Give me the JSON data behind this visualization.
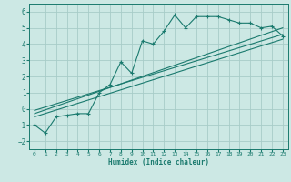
{
  "xlabel": "Humidex (Indice chaleur)",
  "bg_color": "#cce8e4",
  "grid_color": "#a8ccc8",
  "line_color": "#1a7a6e",
  "xlim": [
    -0.5,
    23.5
  ],
  "ylim": [
    -2.5,
    6.5
  ],
  "xticks": [
    0,
    1,
    2,
    3,
    4,
    5,
    6,
    7,
    8,
    9,
    10,
    11,
    12,
    13,
    14,
    15,
    16,
    17,
    18,
    19,
    20,
    21,
    22,
    23
  ],
  "yticks": [
    -2,
    -1,
    0,
    1,
    2,
    3,
    4,
    5,
    6
  ],
  "data_x": [
    0,
    1,
    2,
    3,
    4,
    5,
    6,
    7,
    8,
    9,
    10,
    11,
    12,
    13,
    14,
    15,
    16,
    17,
    18,
    19,
    20,
    21,
    22,
    23
  ],
  "data_y": [
    -1.0,
    -1.5,
    -0.5,
    -0.4,
    -0.3,
    -0.3,
    1.0,
    1.5,
    2.9,
    2.2,
    4.2,
    4.0,
    4.8,
    5.8,
    5.0,
    5.7,
    5.7,
    5.7,
    5.5,
    5.3,
    5.3,
    5.0,
    5.1,
    4.5
  ],
  "line1_x": [
    0,
    23
  ],
  "line1_y": [
    -0.5,
    4.3
  ],
  "line2_x": [
    0,
    23
  ],
  "line2_y": [
    -0.3,
    5.0
  ],
  "line3_x": [
    0,
    23
  ],
  "line3_y": [
    -0.1,
    4.6
  ]
}
